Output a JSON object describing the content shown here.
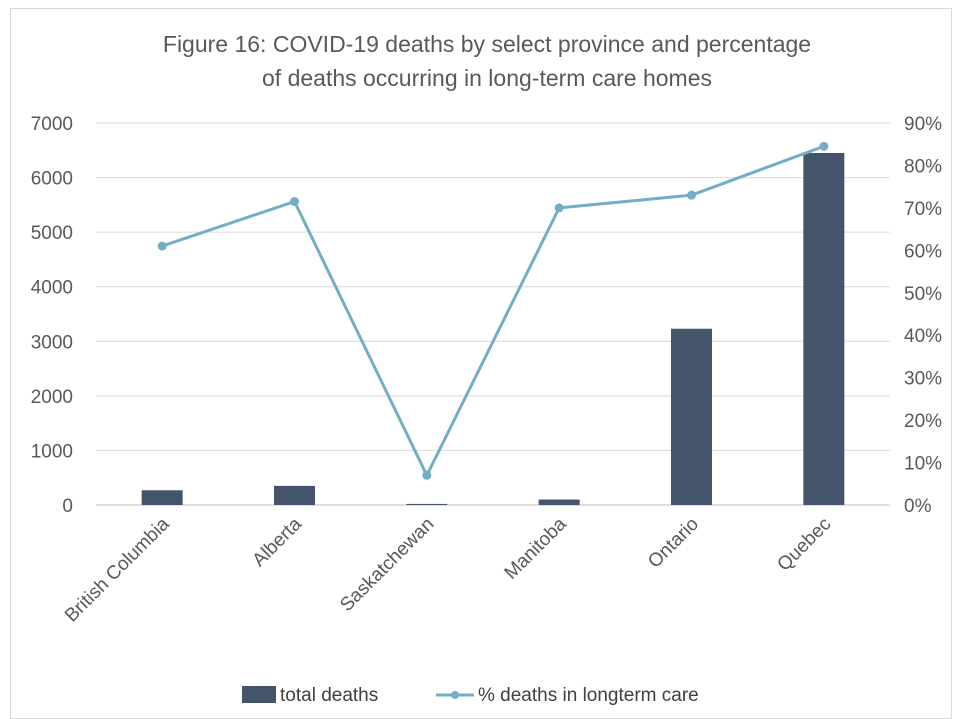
{
  "chart_data": {
    "type": "bar+line",
    "title_lines": [
      "Figure 16: COVID-19 deaths by select province and percentage",
      "of deaths occurring in long-term care homes"
    ],
    "categories": [
      "British Columbia",
      "Alberta",
      "Saskatchewan",
      "Manitoba",
      "Ontario",
      "Quebec"
    ],
    "series": [
      {
        "name": "total deaths",
        "type": "bar",
        "axis": "left",
        "color": "#44546a",
        "values": [
          270,
          350,
          20,
          100,
          3230,
          6450
        ]
      },
      {
        "name": "% deaths in longterm care",
        "type": "line",
        "axis": "right",
        "color": "#74aec4",
        "values": [
          61,
          71.5,
          7,
          70,
          73,
          84.5
        ]
      }
    ],
    "y_left": {
      "min": 0,
      "max": 7000,
      "ticks": [
        "0",
        "1000",
        "2000",
        "3000",
        "4000",
        "5000",
        "6000",
        "7000"
      ]
    },
    "y_right": {
      "min": 0,
      "max": 90,
      "ticks": [
        "0%",
        "10%",
        "20%",
        "30%",
        "40%",
        "50%",
        "60%",
        "70%",
        "80%",
        "90%"
      ]
    },
    "grid": true,
    "legend_position": "bottom"
  }
}
